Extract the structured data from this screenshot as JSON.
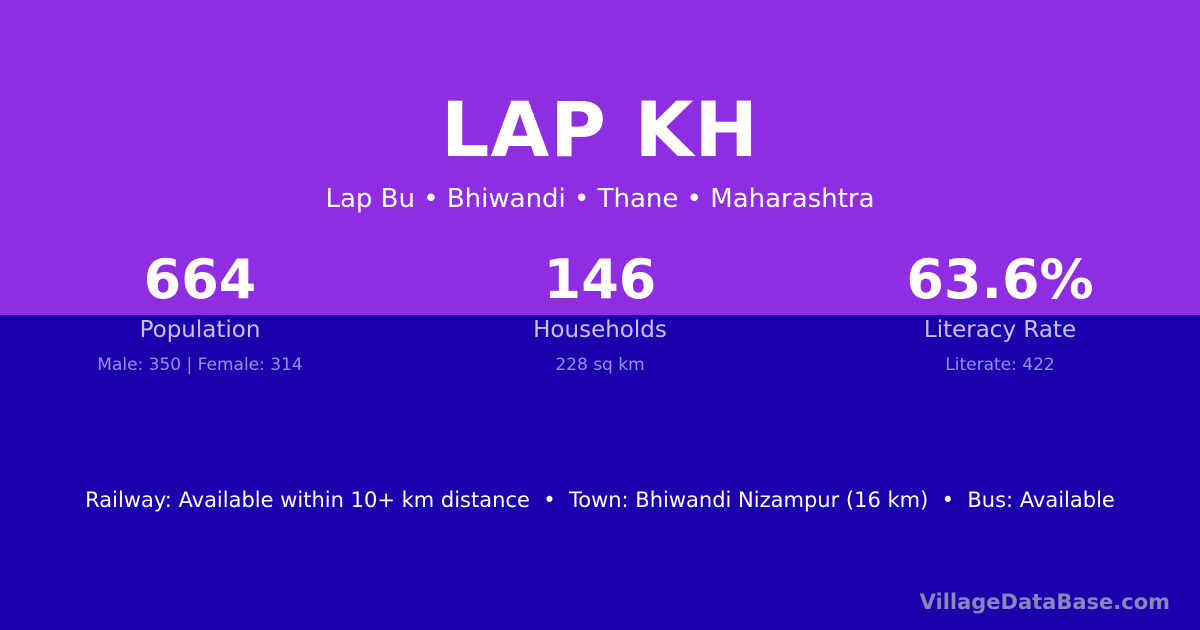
{
  "header": {
    "title": "LAP KH",
    "subtitle": "Lap Bu • Bhiwandi • Thane • Maharashtra"
  },
  "stats": [
    {
      "value": "664",
      "label": "Population",
      "detail": "Male: 350 | Female: 314"
    },
    {
      "value": "146",
      "label": "Households",
      "detail": "228 sq km"
    },
    {
      "value": "63.6%",
      "label": "Literacy Rate",
      "detail": "Literate: 422"
    }
  ],
  "facts": "Railway: Available within 10+ km distance  •  Town: Bhiwandi Nizampur (16 km)  •  Bus: Available",
  "brand": "VillageDataBase.com",
  "colors": {
    "top_band": "#8e2de2",
    "bottom_band": "#1a00ac"
  }
}
